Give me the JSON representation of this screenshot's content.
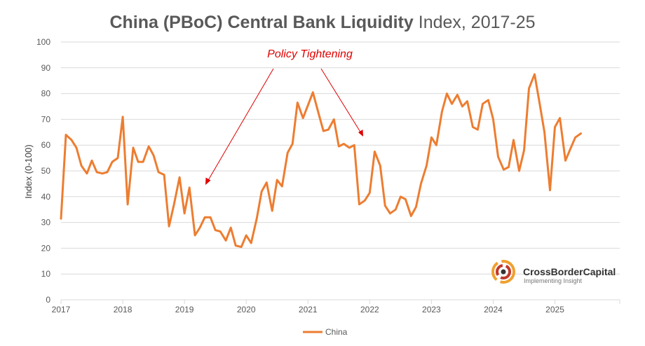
{
  "chart_data": {
    "type": "line",
    "title_bold": "China (PBoC) Central Bank Liquidity",
    "title_rest": " Index, 2017-25",
    "ylabel": "Index (0-100)",
    "xlabel": "",
    "ylim": [
      0,
      100
    ],
    "xlim": [
      2017,
      2026.05
    ],
    "yticks": [
      0,
      10,
      20,
      30,
      40,
      50,
      60,
      70,
      80,
      90,
      100
    ],
    "xticks": [
      2017,
      2018,
      2019,
      2020,
      2021,
      2022,
      2023,
      2024,
      2025
    ],
    "grid": true,
    "legend": "bottom-center",
    "series": [
      {
        "name": "China",
        "color": "#ED7D31",
        "x": [
          2017.0,
          2017.08,
          2017.17,
          2017.25,
          2017.33,
          2017.42,
          2017.5,
          2017.58,
          2017.67,
          2017.75,
          2017.83,
          2017.92,
          2018.0,
          2018.08,
          2018.17,
          2018.25,
          2018.33,
          2018.42,
          2018.5,
          2018.58,
          2018.67,
          2018.75,
          2018.83,
          2018.92,
          2019.0,
          2019.08,
          2019.17,
          2019.25,
          2019.33,
          2019.42,
          2019.5,
          2019.58,
          2019.67,
          2019.75,
          2019.83,
          2019.92,
          2020.0,
          2020.08,
          2020.17,
          2020.25,
          2020.33,
          2020.42,
          2020.5,
          2020.58,
          2020.67,
          2020.75,
          2020.83,
          2020.92,
          2021.0,
          2021.08,
          2021.17,
          2021.25,
          2021.33,
          2021.42,
          2021.5,
          2021.58,
          2021.67,
          2021.75,
          2021.83,
          2021.92,
          2022.0,
          2022.08,
          2022.17,
          2022.25,
          2022.33,
          2022.42,
          2022.5,
          2022.58,
          2022.67,
          2022.75,
          2022.83,
          2022.92,
          2023.0,
          2023.08,
          2023.17,
          2023.25,
          2023.33,
          2023.42,
          2023.5,
          2023.58,
          2023.67,
          2023.75,
          2023.83,
          2023.92,
          2024.0,
          2024.08,
          2024.17,
          2024.25,
          2024.33,
          2024.42,
          2024.5,
          2024.58,
          2024.67,
          2024.75,
          2024.83,
          2024.92,
          2025.0,
          2025.08,
          2025.17,
          2025.25,
          2025.33,
          2025.42
        ],
        "values": [
          31.5,
          64,
          62,
          59,
          52,
          49,
          54,
          49.5,
          49,
          49.5,
          53.5,
          55,
          71,
          37,
          59,
          53.5,
          53.5,
          59.5,
          56,
          49.5,
          48.5,
          28.5,
          37,
          47.5,
          33.5,
          43.5,
          25,
          28,
          32,
          32,
          27,
          26.5,
          23,
          28,
          21,
          20.5,
          25,
          22,
          31.5,
          42,
          45.5,
          34.5,
          46.5,
          44,
          57,
          60.5,
          76.5,
          70.5,
          75.5,
          80.5,
          72.5,
          65.5,
          66,
          70,
          59.5,
          60.5,
          59,
          60,
          37,
          38.5,
          41.5,
          57.5,
          52,
          36.5,
          33.5,
          35,
          40,
          39,
          32.5,
          36,
          45,
          52,
          63,
          60,
          73,
          80,
          76,
          79.5,
          75,
          77,
          67,
          66,
          76,
          77.5,
          70,
          55.5,
          50.5,
          51.5,
          62,
          50,
          58,
          82,
          87.5,
          76.5,
          65,
          42.5,
          67,
          70.5,
          54,
          58.5,
          63,
          64.5
        ]
      }
    ],
    "annotation": {
      "text": "Policy Tightening",
      "color": "#e00000"
    },
    "axis_color": "#d9d9d9",
    "grid_color": "#d9d9d9"
  },
  "logo": {
    "name": "CrossBorderCapital",
    "tagline": "Implementing Insight"
  }
}
